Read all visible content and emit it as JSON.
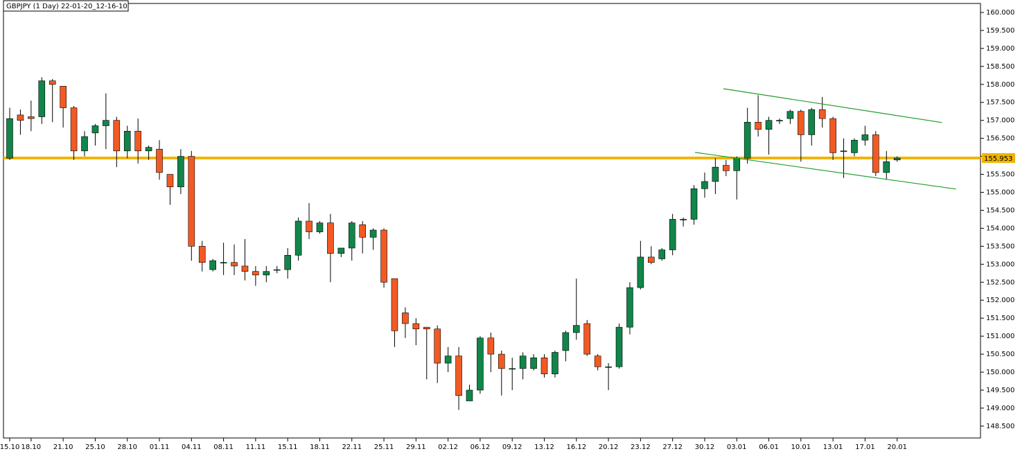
{
  "chart_data": {
    "type": "candlestick",
    "title": "GBPJPY (1 Day) 22-01-20_12-16-10",
    "up_color": "#11854a",
    "down_color": "#f25a24",
    "categories": [
      "15.10",
      null,
      "18.10",
      null,
      null,
      "21.10",
      null,
      null,
      "25.10",
      null,
      null,
      "28.10",
      null,
      null,
      "01.11",
      null,
      null,
      "04.11",
      null,
      null,
      "08.11",
      null,
      null,
      "11.11",
      null,
      null,
      "15.11",
      null,
      null,
      "18.11",
      null,
      null,
      "22.11",
      null,
      null,
      "25.11",
      null,
      null,
      "29.11",
      null,
      null,
      "02.12",
      null,
      null,
      "06.12",
      null,
      null,
      "09.12",
      null,
      null,
      "13.12",
      null,
      null,
      "16.12",
      null,
      null,
      "20.12",
      null,
      null,
      "23.12",
      null,
      null,
      "27.12",
      null,
      null,
      "30.12",
      null,
      null,
      "03.01",
      null,
      null,
      "06.01",
      null,
      null,
      "10.01",
      null,
      null,
      "13.01",
      null,
      null,
      "17.01",
      null,
      null,
      "20.01"
    ],
    "open": [
      155.95,
      157.15,
      157.1,
      157.1,
      158.1,
      157.95,
      157.35,
      156.15,
      156.65,
      156.85,
      157.0,
      156.15,
      156.7,
      156.15,
      156.2,
      155.5,
      155.15,
      156.0,
      153.5,
      152.85,
      153.05,
      153.05,
      152.95,
      152.8,
      152.7,
      152.85,
      152.85,
      153.25,
      154.2,
      153.9,
      154.15,
      153.3,
      153.45,
      154.1,
      153.75,
      153.95,
      152.6,
      151.65,
      151.35,
      151.25,
      151.2,
      150.25,
      150.45,
      149.2,
      149.5,
      150.95,
      150.5,
      150.1,
      150.1,
      150.1,
      150.4,
      149.95,
      150.6,
      151.1,
      151.35,
      150.45,
      150.15,
      150.15,
      151.25,
      152.35,
      153.2,
      153.15,
      153.4,
      154.25,
      154.25,
      155.1,
      155.3,
      155.75,
      155.6,
      155.95,
      156.95,
      156.75,
      157.0,
      157.05,
      157.25,
      156.6,
      157.3,
      157.05,
      156.15,
      156.1,
      156.45,
      156.6,
      155.55,
      155.9
    ],
    "high": [
      157.35,
      157.3,
      157.55,
      158.2,
      158.15,
      157.95,
      157.4,
      156.7,
      156.9,
      157.75,
      157.1,
      156.85,
      157.05,
      156.3,
      156.45,
      155.5,
      156.2,
      156.15,
      153.65,
      153.15,
      153.6,
      153.55,
      153.7,
      152.95,
      152.95,
      152.95,
      153.45,
      154.3,
      154.7,
      154.2,
      154.4,
      153.45,
      154.2,
      154.2,
      154.0,
      154.0,
      152.6,
      151.8,
      151.5,
      151.25,
      151.3,
      150.7,
      150.7,
      149.65,
      151.0,
      151.1,
      150.6,
      150.4,
      150.55,
      150.5,
      150.5,
      150.6,
      151.15,
      152.6,
      151.45,
      150.5,
      150.25,
      151.35,
      152.5,
      153.65,
      153.5,
      153.45,
      154.4,
      154.3,
      155.2,
      155.55,
      155.95,
      155.9,
      156.0,
      157.35,
      157.7,
      157.1,
      157.05,
      157.3,
      157.3,
      157.35,
      157.65,
      157.1,
      156.5,
      156.5,
      156.85,
      156.7,
      156.15,
      156.0
    ],
    "low": [
      155.9,
      156.6,
      156.7,
      156.9,
      156.95,
      156.8,
      155.9,
      156.0,
      156.3,
      156.2,
      155.7,
      155.95,
      155.8,
      155.9,
      155.35,
      154.65,
      154.95,
      153.1,
      152.8,
      152.8,
      152.7,
      152.7,
      152.55,
      152.4,
      152.5,
      152.75,
      152.6,
      153.1,
      153.7,
      153.85,
      152.5,
      153.2,
      153.1,
      153.3,
      153.4,
      152.35,
      150.7,
      150.95,
      150.75,
      149.8,
      149.7,
      150.0,
      148.95,
      149.2,
      149.4,
      150.0,
      149.35,
      149.5,
      149.8,
      150.05,
      149.85,
      149.85,
      150.3,
      150.9,
      150.45,
      150.05,
      149.5,
      150.1,
      151.05,
      152.3,
      153.0,
      153.1,
      153.25,
      154.05,
      154.1,
      154.85,
      154.95,
      155.45,
      154.8,
      155.8,
      156.55,
      156.05,
      156.9,
      156.9,
      155.85,
      156.3,
      156.8,
      155.9,
      155.4,
      156.0,
      156.3,
      155.45,
      155.35,
      155.85
    ],
    "close": [
      157.05,
      157.0,
      157.05,
      158.1,
      158.0,
      157.35,
      156.15,
      156.55,
      156.85,
      157.0,
      156.15,
      156.7,
      156.15,
      156.25,
      155.55,
      155.15,
      156.0,
      153.5,
      153.05,
      153.1,
      153.05,
      152.95,
      152.8,
      152.7,
      152.8,
      152.85,
      153.25,
      154.2,
      153.9,
      154.15,
      153.3,
      153.45,
      154.15,
      153.75,
      153.95,
      152.5,
      151.15,
      151.35,
      151.2,
      151.2,
      150.25,
      150.45,
      149.35,
      149.5,
      150.95,
      150.5,
      150.1,
      150.1,
      150.45,
      150.4,
      149.95,
      150.55,
      151.1,
      151.3,
      150.5,
      150.15,
      150.15,
      151.25,
      152.35,
      153.2,
      153.05,
      153.4,
      154.25,
      154.25,
      155.1,
      155.3,
      155.7,
      155.6,
      155.95,
      156.95,
      156.75,
      157.0,
      157.0,
      157.25,
      156.6,
      157.3,
      157.05,
      156.1,
      156.15,
      156.45,
      156.6,
      155.55,
      155.85,
      155.953
    ],
    "ylim": [
      148.17,
      160.25
    ],
    "yticks": [
      {
        "value": 148.5,
        "label": "148.500"
      },
      {
        "value": 149,
        "label": "149.000"
      },
      {
        "value": 149.5,
        "label": "149.500"
      },
      {
        "value": 150,
        "label": "150.000"
      },
      {
        "value": 150.5,
        "label": "150.500"
      },
      {
        "value": 151,
        "label": "151.000"
      },
      {
        "value": 151.5,
        "label": "151.500"
      },
      {
        "value": 152,
        "label": "152.000"
      },
      {
        "value": 152.5,
        "label": "152.500"
      },
      {
        "value": 153,
        "label": "153.000"
      },
      {
        "value": 153.5,
        "label": "153.500"
      },
      {
        "value": 154,
        "label": "154.000"
      },
      {
        "value": 154.5,
        "label": "154.500"
      },
      {
        "value": 155,
        "label": "155.000"
      },
      {
        "value": 155.5,
        "label": "155.500"
      },
      {
        "value": 156,
        "label": "156.000"
      },
      {
        "value": 156.5,
        "label": "156.500"
      },
      {
        "value": 157,
        "label": "157.000"
      },
      {
        "value": 157.5,
        "label": "157.500"
      },
      {
        "value": 158,
        "label": "158.000"
      },
      {
        "value": 158.5,
        "label": "158.500"
      },
      {
        "value": 159,
        "label": "159.000"
      },
      {
        "value": 159.5,
        "label": "159.500"
      },
      {
        "value": 160,
        "label": "160.000"
      }
    ],
    "price_line": {
      "value": 155.953,
      "color": "#f0b400"
    },
    "trendlines": [
      {
        "x": [
          66.75,
          87.2
        ],
        "y": [
          157.88,
          156.94
        ],
        "color": "#1f9e2a"
      },
      {
        "x": [
          64.1,
          88.5
        ],
        "y": [
          156.11,
          155.09
        ],
        "color": "#1f9e2a"
      }
    ]
  }
}
